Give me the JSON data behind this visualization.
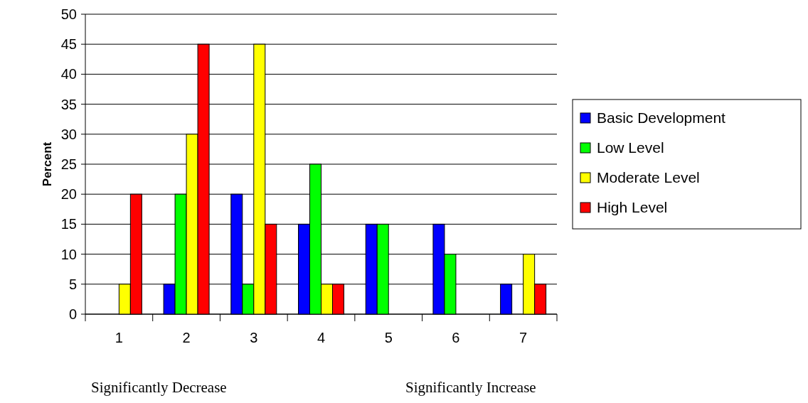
{
  "chart_data": {
    "type": "bar",
    "ylabel": "Percent",
    "categories": [
      "1",
      "2",
      "3",
      "4",
      "5",
      "6",
      "7"
    ],
    "series": [
      {
        "name": "Basic Development",
        "color": "#0000ff",
        "values": [
          0,
          5,
          20,
          15,
          15,
          15,
          5
        ]
      },
      {
        "name": "Low Level",
        "color": "#00ff00",
        "values": [
          0,
          20,
          5,
          25,
          15,
          10,
          0
        ]
      },
      {
        "name": "Moderate Level",
        "color": "#ffff00",
        "values": [
          5,
          30,
          45,
          5,
          0,
          0,
          10
        ]
      },
      {
        "name": "High Level",
        "color": "#ff0000",
        "values": [
          20,
          45,
          15,
          5,
          0,
          0,
          5
        ]
      }
    ],
    "ylim": [
      0,
      50
    ],
    "yticks": [
      0,
      5,
      10,
      15,
      20,
      25,
      30,
      35,
      40,
      45,
      50
    ],
    "grid": "y",
    "legend": "right",
    "annotations": [
      "Significantly Decrease",
      "Significantly Increase"
    ]
  }
}
